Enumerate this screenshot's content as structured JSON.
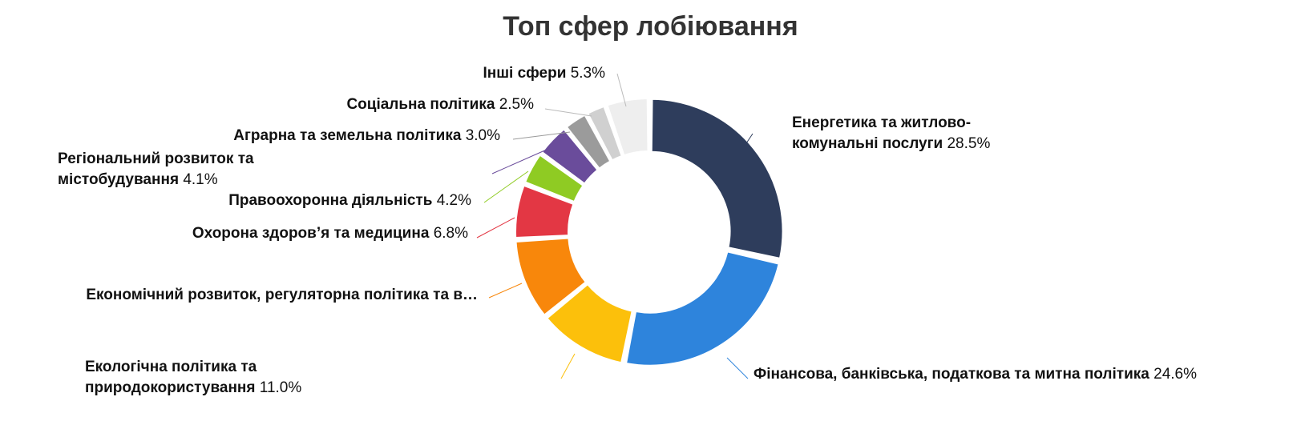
{
  "chart_data": {
    "type": "pie",
    "variant": "donut",
    "title": "Топ сфер лобіювання",
    "legend": "none",
    "slices": [
      {
        "name": "Енергетика та житлово-комунальні послуги",
        "lines": [
          "Енергетика та житлово-",
          "комунальні послуги"
        ],
        "value_label": "28.5%",
        "value": 28.5,
        "color": "#2e3d5c"
      },
      {
        "name": "Фінансова, банківська, податкова та митна політика",
        "lines": [
          "Фінансова, банківська, податкова та митна політика"
        ],
        "value_label": "24.6%",
        "value": 24.6,
        "color": "#2e84dc"
      },
      {
        "name": "Екологічна політика та природокористування",
        "lines": [
          "Екологічна політика та",
          "природокористування"
        ],
        "value_label": "11.0%",
        "value": 11.0,
        "color": "#fcc00b"
      },
      {
        "name": "Економічний розвиток, регуляторна політика та в…",
        "lines": [
          "Економічний розвиток, регуляторна політика та в…"
        ],
        "value_label": "",
        "value": 10.0,
        "color": "#f8870b"
      },
      {
        "name": "Охорона здоров’я та медицина",
        "lines": [
          "Охорона здоров’я та медицина"
        ],
        "value_label": "6.8%",
        "value": 6.8,
        "color": "#e33744"
      },
      {
        "name": "Регіональний розвиток та містобудування",
        "lines": [
          "Регіональний розвиток та",
          "містобудування"
        ],
        "value_label": "4.1%",
        "value": 4.1,
        "color": "#8fcb23"
      },
      {
        "name": "Правоохоронна діяльність",
        "lines": [
          "Правоохоронна діяльність"
        ],
        "value_label": "4.2%",
        "value": 4.2,
        "color": "#6a4c9b"
      },
      {
        "name": "Аграрна та земельна політика",
        "lines": [
          "Аграрна та земельна політика"
        ],
        "value_label": "3.0%",
        "value": 3.0,
        "color": "#9b9b9b"
      },
      {
        "name": "Соціальна політика",
        "lines": [
          "Соціальна політика"
        ],
        "value_label": "2.5%",
        "value": 2.5,
        "color": "#d0d0d0"
      },
      {
        "name": "Інші сфери",
        "lines": [
          "Інші сфери"
        ],
        "value_label": "5.3%",
        "value": 5.3,
        "color": "#eeeeee"
      }
    ]
  }
}
